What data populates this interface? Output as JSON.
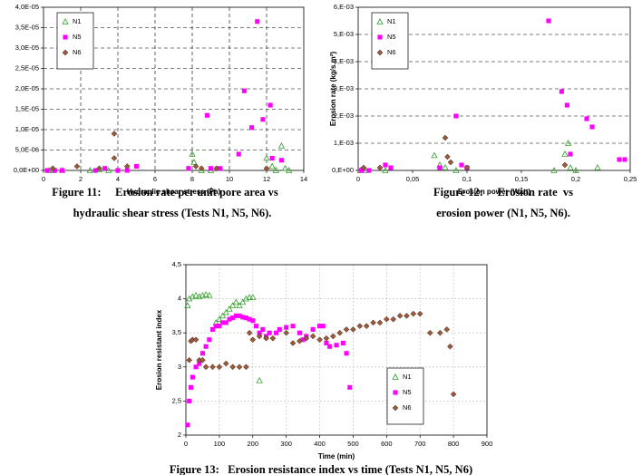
{
  "chart_data": [
    {
      "type": "scatter",
      "x_label": "Hydraulic shear stress (Pa)",
      "xlim": [
        0,
        14
      ],
      "xticks": [
        0,
        2,
        4,
        6,
        8,
        10,
        12,
        14
      ],
      "ylim": [
        0,
        4e-05
      ],
      "yticks": [
        {
          "value": 0,
          "label": "0,0E+00"
        },
        {
          "value": 5e-06,
          "label": "5,0E-06"
        },
        {
          "value": 1e-05,
          "label": "1,0E-05"
        },
        {
          "value": 1.5e-05,
          "label": "1,5E-05"
        },
        {
          "value": 2e-05,
          "label": "2,0E-05"
        },
        {
          "value": 2.5e-05,
          "label": "2,5E-05"
        },
        {
          "value": 3e-05,
          "label": "3,0E-05"
        },
        {
          "value": 3.5e-05,
          "label": "3,5E-05"
        },
        {
          "value": 4e-05,
          "label": "4,0E-05"
        }
      ],
      "xgrid": true,
      "ygrid": true,
      "legend": "upper left",
      "series": [
        {
          "name": "N1",
          "color": "#33a02c",
          "marker": "triangle",
          "x": [
            0.3,
            0.5,
            1,
            2.5,
            3,
            3.5,
            8,
            8.1,
            8.5,
            9,
            12,
            12.3,
            12.8,
            12.5,
            13,
            13.2
          ],
          "values": [
            0,
            0,
            0,
            0,
            2e-07,
            0,
            4e-06,
            2e-06,
            0,
            0,
            3e-06,
            1e-06,
            6e-06,
            0,
            5e-07,
            0
          ]
        },
        {
          "name": "N5",
          "color": "#ff00ff",
          "marker": "square",
          "x": [
            0.2,
            0.6,
            1,
            2.8,
            3.3,
            4,
            4.5,
            5,
            7.8,
            8.8,
            9,
            9.5,
            10.5,
            10.8,
            11.2,
            11.5,
            11.8,
            12.2,
            12.3,
            12.8
          ],
          "values": [
            0,
            0,
            0,
            0,
            5e-07,
            0,
            0,
            1e-06,
            5e-07,
            1.35e-05,
            5e-07,
            5e-07,
            4e-06,
            1.95e-05,
            1.05e-05,
            3.65e-05,
            1.25e-05,
            1.6e-05,
            3e-06,
            2.5e-06
          ]
        },
        {
          "name": "N6",
          "color": "#9c5a3c",
          "marker": "diamond",
          "x": [
            0.5,
            1.8,
            3,
            3.8,
            3.8,
            4.5,
            8.2,
            8.5,
            9.3,
            12
          ],
          "values": [
            5e-07,
            1e-06,
            5e-07,
            3e-06,
            9e-06,
            1e-06,
            1e-06,
            5e-07,
            5e-07,
            5e-07
          ]
        }
      ]
    },
    {
      "type": "scatter",
      "x_label": "Erosion power (Watt)",
      "y_label": "Erosion rate (kg/s.m²)",
      "xlim": [
        0,
        0.25
      ],
      "xticks": [
        0,
        {
          "value": 0.05,
          "label": "0,05"
        },
        {
          "value": 0.1,
          "label": "0,1"
        },
        {
          "value": 0.15,
          "label": "0,15"
        },
        {
          "value": 0.2,
          "label": "0,2"
        },
        {
          "value": 0.25,
          "label": "0,25"
        }
      ],
      "ylim": [
        0,
        0.006
      ],
      "yticks": [
        {
          "value": 0,
          "label": "0,E+00"
        },
        {
          "value": 0.001,
          "label": "1,E-03"
        },
        {
          "value": 0.002,
          "label": "2,E-03"
        },
        {
          "value": 0.003,
          "label": "3,E-03"
        },
        {
          "value": 0.004,
          "label": "4,E-03"
        },
        {
          "value": 0.005,
          "label": "5,E-03"
        },
        {
          "value": 0.006,
          "label": "6,E-03"
        }
      ],
      "xgrid": false,
      "ygrid": true,
      "legend": "upper left",
      "series": [
        {
          "name": "N1",
          "color": "#33a02c",
          "marker": "triangle",
          "x": [
            0.002,
            0.007,
            0.025,
            0.07,
            0.075,
            0.08,
            0.09,
            0.18,
            0.19,
            0.193,
            0.195,
            0.2,
            0.22
          ],
          "values": [
            0,
            0,
            0,
            0.00055,
            0.0002,
            0.0001,
            0,
            0,
            0.0006,
            0.001,
            0.0001,
            0,
            0.0001
          ]
        },
        {
          "name": "N5",
          "color": "#ff00ff",
          "marker": "square",
          "x": [
            0.003,
            0.01,
            0.025,
            0.03,
            0.075,
            0.09,
            0.095,
            0.1,
            0.175,
            0.187,
            0.192,
            0.195,
            0.21,
            0.215,
            0.24,
            0.245
          ],
          "values": [
            0,
            0,
            0.0002,
            0.0001,
            0.0001,
            0.002,
            0.0002,
            0.0001,
            0.0055,
            0.0029,
            0.0024,
            0.0006,
            0.0019,
            0.0016,
            0.0004,
            0.0004
          ]
        },
        {
          "name": "N6",
          "color": "#9c5a3c",
          "marker": "diamond",
          "x": [
            0.005,
            0.02,
            0.08,
            0.082,
            0.085,
            0.1,
            0.19
          ],
          "values": [
            0.0001,
            0.0001,
            0.0012,
            0.0005,
            0.0003,
            0.0001,
            0.0002
          ]
        }
      ]
    },
    {
      "type": "scatter",
      "x_label": "Time (min)",
      "y_label": "Erosion resistant index",
      "xlim": [
        0,
        900
      ],
      "xticks": [
        0,
        100,
        200,
        300,
        400,
        500,
        600,
        700,
        800,
        900
      ],
      "ylim": [
        2,
        4.5
      ],
      "yticks": [
        2,
        {
          "value": 2.5,
          "label": "2,5"
        },
        3,
        {
          "value": 3.5,
          "label": "3,5"
        },
        4,
        {
          "value": 4.5,
          "label": "4,5"
        }
      ],
      "xgrid": true,
      "ygrid": true,
      "legend": "lower right",
      "series": [
        {
          "name": "N1",
          "color": "#33a02c",
          "marker": "triangle",
          "x": [
            5,
            10,
            20,
            30,
            40,
            50,
            60,
            70,
            90,
            100,
            110,
            120,
            130,
            140,
            150,
            160,
            170,
            180,
            190,
            200,
            220
          ],
          "values": [
            3.9,
            4,
            4.03,
            4.05,
            4.03,
            4.05,
            4.06,
            4.05,
            3.65,
            3.7,
            3.75,
            3.8,
            3.85,
            3.9,
            3.95,
            3.9,
            3.95,
            4,
            4.02,
            4.02,
            2.8
          ]
        },
        {
          "name": "N5",
          "color": "#ff00ff",
          "marker": "square",
          "x": [
            5,
            10,
            15,
            20,
            30,
            40,
            50,
            60,
            70,
            80,
            90,
            100,
            110,
            120,
            130,
            140,
            150,
            160,
            170,
            180,
            190,
            200,
            210,
            220,
            230,
            240,
            250,
            270,
            280,
            300,
            320,
            340,
            350,
            360,
            380,
            400,
            410,
            420,
            430,
            450,
            470,
            480,
            490
          ],
          "values": [
            2.15,
            2.5,
            2.7,
            2.85,
            3,
            3.05,
            3.2,
            3.3,
            3.4,
            3.55,
            3.6,
            3.6,
            3.65,
            3.65,
            3.7,
            3.72,
            3.75,
            3.75,
            3.73,
            3.72,
            3.7,
            3.68,
            3.6,
            3.5,
            3.55,
            3.45,
            3.5,
            3.5,
            3.55,
            3.58,
            3.6,
            3.5,
            3.4,
            3.45,
            3.55,
            3.6,
            3.6,
            3.35,
            3.3,
            3.32,
            3.35,
            3.2,
            2.7
          ]
        },
        {
          "name": "N6",
          "color": "#9c5a3c",
          "marker": "diamond",
          "x": [
            10,
            15,
            20,
            30,
            40,
            50,
            60,
            80,
            100,
            120,
            140,
            160,
            180,
            190,
            200,
            220,
            240,
            260,
            300,
            320,
            340,
            360,
            380,
            400,
            420,
            440,
            460,
            480,
            500,
            520,
            540,
            560,
            580,
            600,
            620,
            640,
            660,
            680,
            700,
            730,
            760,
            780,
            790,
            800
          ],
          "values": [
            3.1,
            3.38,
            3.4,
            3.4,
            3.1,
            3.1,
            3,
            3,
            3,
            3.05,
            3,
            3,
            3,
            3.5,
            3.4,
            3.45,
            3.42,
            3.42,
            3.5,
            3.35,
            3.38,
            3.42,
            3.45,
            3.4,
            3.42,
            3.45,
            3.5,
            3.55,
            3.55,
            3.6,
            3.6,
            3.65,
            3.65,
            3.7,
            3.7,
            3.75,
            3.75,
            3.78,
            3.78,
            3.5,
            3.5,
            3.55,
            3.3,
            2.6
          ]
        }
      ]
    }
  ],
  "captions": [
    [
      "Figure 11:     Erosion rate per unit pore area vs",
      "hydraulic shear stress (Tests N1, N5, N6)."
    ],
    [
      "Figure 12:     Erosion rate  vs",
      "erosion power (N1, N5, N6)."
    ],
    [
      "Figure 13:   Erosion resistance index vs time (Tests N1, N5, N6)"
    ]
  ]
}
